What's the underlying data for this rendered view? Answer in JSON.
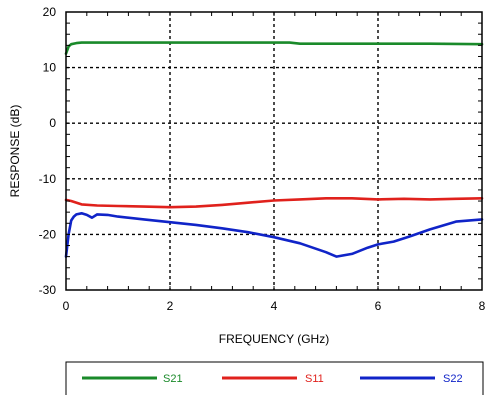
{
  "chart_data": {
    "type": "line",
    "title": "",
    "xlabel": "FREQUENCY (GHz)",
    "ylabel": "RESPONSE (dB)",
    "xlim": [
      0,
      8
    ],
    "ylim": [
      -30,
      20
    ],
    "x_ticks": [
      0,
      2,
      4,
      6,
      8
    ],
    "x_tick_labels": [
      "0",
      "2",
      "4",
      "6",
      "8"
    ],
    "y_ticks": [
      -30,
      -20,
      -10,
      0,
      10,
      20
    ],
    "y_tick_labels": [
      "-30",
      "-20",
      "-10",
      "0",
      "10",
      "20"
    ],
    "grid": "dotted",
    "legend_position": "bottom",
    "series": [
      {
        "name": "S21",
        "color": "#1a8a2a",
        "x": [
          0.0,
          0.05,
          0.1,
          0.2,
          0.3,
          0.5,
          1.0,
          2.0,
          3.0,
          4.0,
          4.3,
          4.5,
          5.0,
          6.0,
          7.0,
          8.0
        ],
        "y": [
          12.5,
          13.8,
          14.2,
          14.4,
          14.5,
          14.5,
          14.5,
          14.5,
          14.5,
          14.5,
          14.5,
          14.3,
          14.3,
          14.3,
          14.3,
          14.2
        ]
      },
      {
        "name": "S11",
        "color": "#e0211c",
        "x": [
          0.0,
          0.1,
          0.3,
          0.6,
          1.0,
          1.5,
          2.0,
          2.5,
          3.0,
          3.5,
          4.0,
          4.5,
          5.0,
          5.5,
          6.0,
          6.5,
          7.0,
          7.5,
          8.0
        ],
        "y": [
          -13.8,
          -14.0,
          -14.6,
          -14.8,
          -14.9,
          -15.0,
          -15.1,
          -15.0,
          -14.7,
          -14.3,
          -13.9,
          -13.7,
          -13.5,
          -13.5,
          -13.7,
          -13.6,
          -13.7,
          -13.6,
          -13.5
        ]
      },
      {
        "name": "S22",
        "color": "#1024c8",
        "x": [
          0.0,
          0.05,
          0.1,
          0.15,
          0.2,
          0.3,
          0.4,
          0.5,
          0.6,
          0.8,
          1.0,
          1.5,
          2.0,
          2.5,
          3.0,
          3.5,
          4.0,
          4.5,
          5.0,
          5.2,
          5.5,
          5.8,
          6.0,
          6.3,
          6.6,
          7.0,
          7.5,
          8.0
        ],
        "y": [
          -24.0,
          -20.0,
          -17.5,
          -16.8,
          -16.4,
          -16.2,
          -16.5,
          -17.0,
          -16.4,
          -16.5,
          -16.8,
          -17.3,
          -17.8,
          -18.3,
          -18.9,
          -19.6,
          -20.5,
          -21.6,
          -23.2,
          -24.0,
          -23.5,
          -22.4,
          -21.8,
          -21.3,
          -20.4,
          -19.1,
          -17.7,
          -17.3
        ]
      }
    ]
  }
}
